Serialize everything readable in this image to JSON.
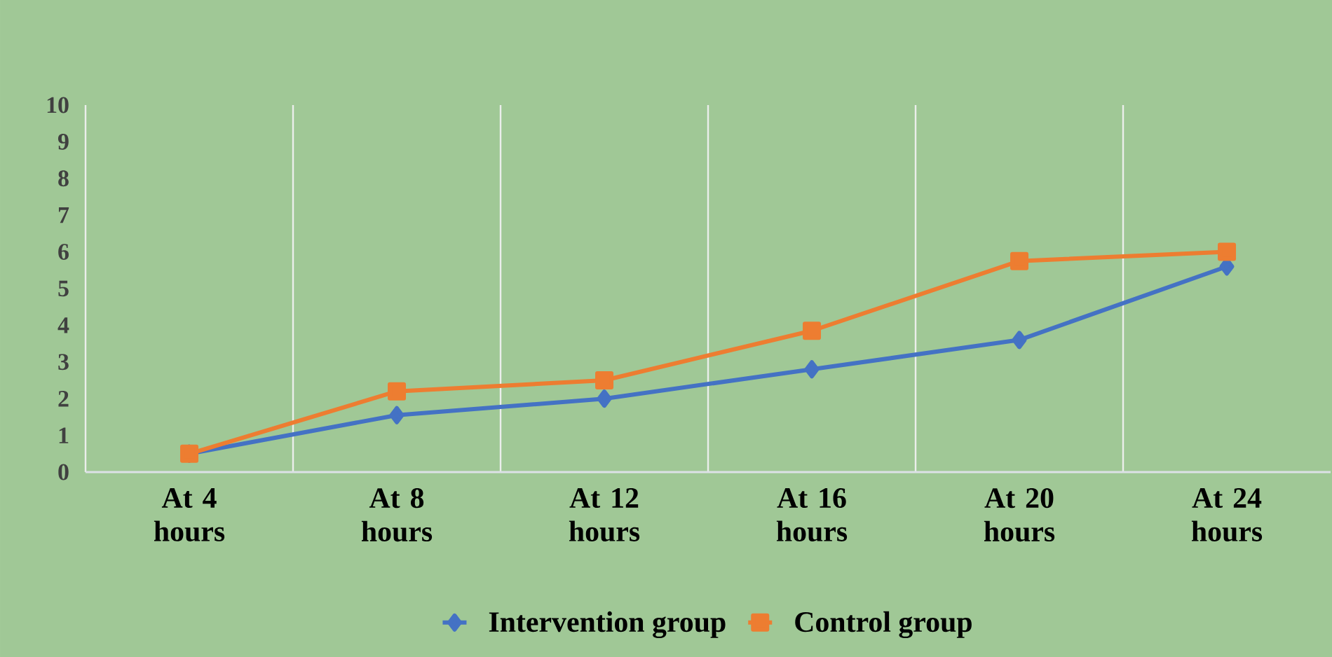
{
  "chart_data": {
    "type": "line",
    "categories": [
      "At 4 hours",
      "At 8 hours",
      "At 12 hours",
      "At 16 hours",
      "At 20 hours",
      "At 24 hours"
    ],
    "series": [
      {
        "name": "Intervention group",
        "color": "#4472c4",
        "marker": "diamond",
        "values": [
          0.5,
          1.55,
          2.0,
          2.8,
          3.6,
          5.6
        ]
      },
      {
        "name": "Control group",
        "color": "#ed7d31",
        "marker": "square",
        "values": [
          0.5,
          2.2,
          2.5,
          3.85,
          5.75,
          6.0
        ]
      }
    ],
    "ylim": [
      0,
      10
    ],
    "yticks": [
      0,
      1,
      2,
      3,
      4,
      5,
      6,
      7,
      8,
      9,
      10
    ],
    "grid": "x",
    "legend": "bottom",
    "line_style": "solid"
  }
}
